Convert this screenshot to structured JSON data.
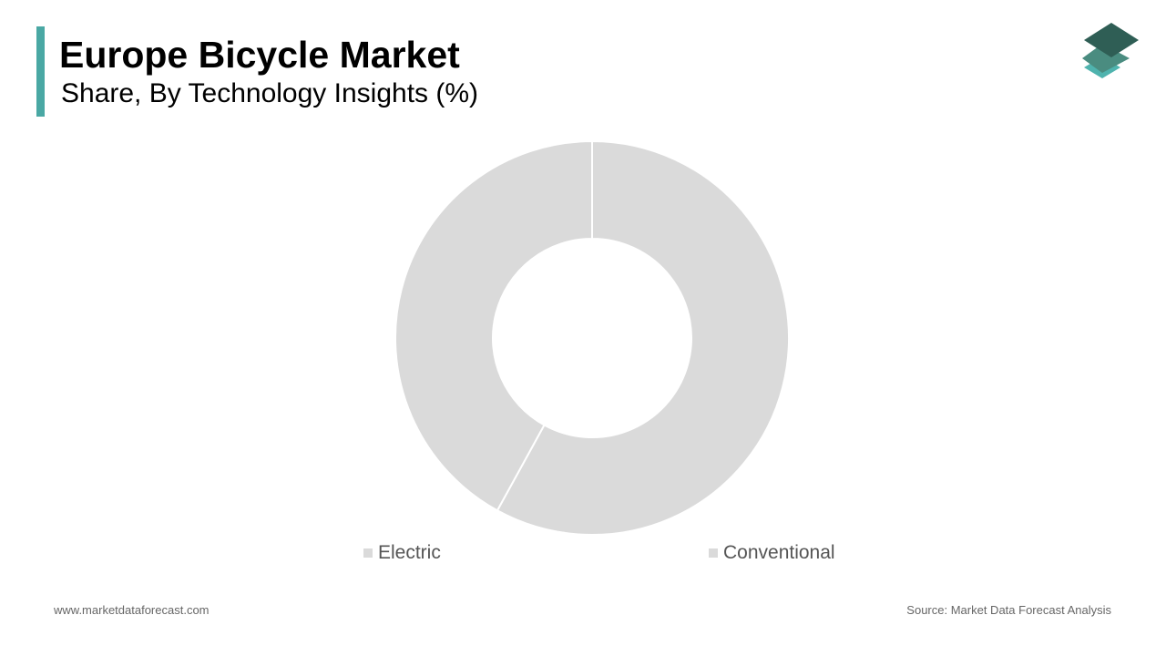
{
  "header": {
    "title": "Europe Bicycle Market",
    "subtitle": "Share, By Technology Insights (%)"
  },
  "colors": {
    "accent": "#4aa8a4",
    "slice": "#dadada",
    "separator": "#ffffff",
    "logo_dark": "#2f5e55",
    "logo_mid": "#4a8c80",
    "logo_light": "#4fb3ae"
  },
  "icons": {
    "logo": "stacked-layers-icon"
  },
  "chart_data": {
    "type": "pie",
    "donut": true,
    "categories": [
      "Electric",
      "Conventional"
    ],
    "values": [
      42,
      58
    ],
    "start": "12 o'clock, clockwise order: Conventional then Electric",
    "legend": "bottom"
  },
  "footer": {
    "website": "www.marketdataforecast.com",
    "source": "Source: Market Data Forecast Analysis"
  }
}
